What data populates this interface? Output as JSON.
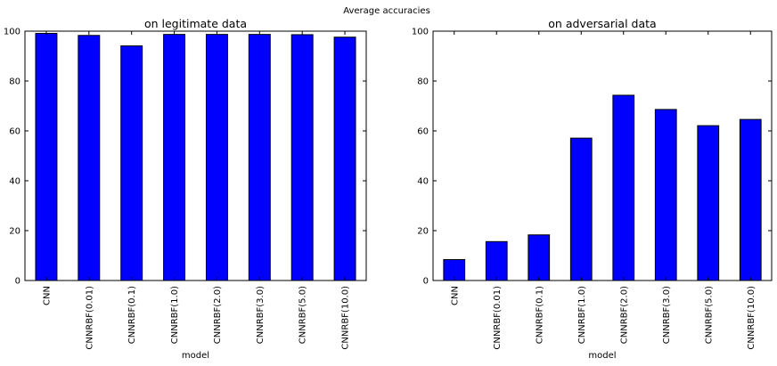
{
  "suptitle": "Average accuracies",
  "colors": {
    "bar": "#0000ff",
    "edge": "#000000",
    "axes": "#000000",
    "background": "#ffffff"
  },
  "chart_data": [
    {
      "type": "bar",
      "title": "on legitimate data",
      "xlabel": "model",
      "ylabel": "",
      "categories": [
        "CNN",
        "CNNRBF(0.01)",
        "CNNRBF(0.1)",
        "CNNRBF(1.0)",
        "CNNRBF(2.0)",
        "CNNRBF(3.0)",
        "CNNRBF(5.0)",
        "CNNRBF(10.0)"
      ],
      "values": [
        99.1,
        98.3,
        94.1,
        98.7,
        98.7,
        98.7,
        98.6,
        97.6
      ],
      "ylim": [
        0,
        100
      ],
      "yticks": [
        0,
        20,
        40,
        60,
        80,
        100
      ],
      "grid": false,
      "legend": "none"
    },
    {
      "type": "bar",
      "title": "on adversarial data",
      "xlabel": "model",
      "ylabel": "",
      "categories": [
        "CNN",
        "CNNRBF(0.01)",
        "CNNRBF(0.1)",
        "CNNRBF(1.0)",
        "CNNRBF(2.0)",
        "CNNRBF(3.0)",
        "CNNRBF(5.0)",
        "CNNRBF(10.0)"
      ],
      "values": [
        8.4,
        15.6,
        18.3,
        57.1,
        74.3,
        68.6,
        62.1,
        64.6
      ],
      "ylim": [
        0,
        100
      ],
      "yticks": [
        0,
        20,
        40,
        60,
        80,
        100
      ],
      "grid": false,
      "legend": "none"
    }
  ]
}
